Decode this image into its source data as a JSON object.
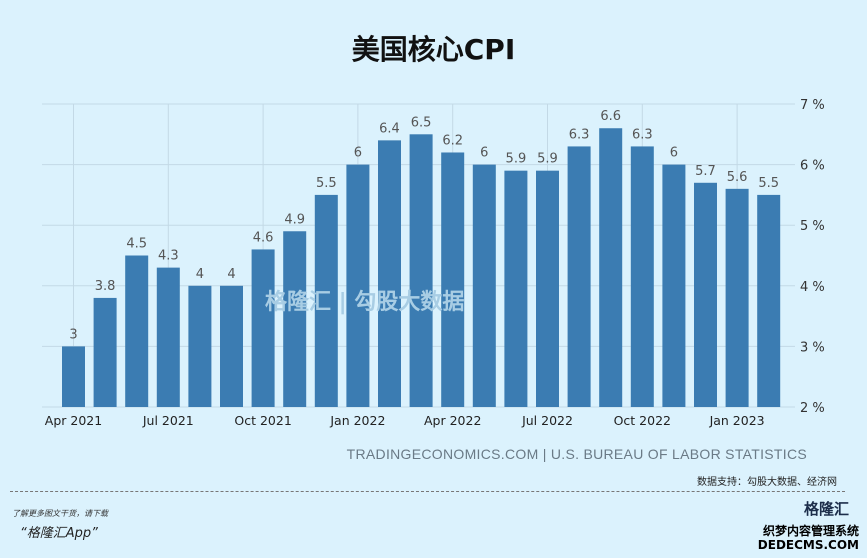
{
  "chart_data": {
    "type": "bar",
    "title": "美国核心CPI",
    "categories": [
      "Apr 2021",
      "May 2021",
      "Jun 2021",
      "Jul 2021",
      "Aug 2021",
      "Sep 2021",
      "Oct 2021",
      "Nov 2021",
      "Dec 2021",
      "Jan 2022",
      "Feb 2022",
      "Mar 2022",
      "Apr 2022",
      "May 2022",
      "Jun 2022",
      "Jul 2022",
      "Aug 2022",
      "Sep 2022",
      "Oct 2022",
      "Nov 2022",
      "Dec 2022",
      "Jan 2023",
      "Feb 2023"
    ],
    "values": [
      3,
      3.8,
      4.5,
      4.3,
      4,
      4,
      4.6,
      4.9,
      5.5,
      6,
      6.4,
      6.5,
      6.2,
      6,
      5.9,
      5.9,
      6.3,
      6.6,
      6.3,
      6,
      5.7,
      5.6,
      5.5
    ],
    "x_tick_labels": [
      "Apr 2021",
      "Jul 2021",
      "Oct 2021",
      "Jan 2022",
      "Apr 2022",
      "Jul 2022",
      "Oct 2022",
      "Jan 2023"
    ],
    "y_tick_labels": [
      "2 %",
      "3 %",
      "4 %",
      "5 %",
      "6 %",
      "7 %"
    ],
    "ylim": [
      2,
      7
    ],
    "grid": true,
    "y_axis_side": "right",
    "bar_color": "#3b7cb2"
  },
  "source": "TRADINGECONOMICS.COM | U.S. BUREAU OF LABOR STATISTICS",
  "support": "数据支持：勾股大数据、经济网",
  "watermark": "格隆汇 | 勾股大数据",
  "footer": {
    "more": "了解更多图文干货，请下载",
    "app": "“格隆汇App”",
    "logo": "格隆汇",
    "site_wm": "织梦内容管理系统",
    "site_url": "DEDECMS.COM"
  }
}
